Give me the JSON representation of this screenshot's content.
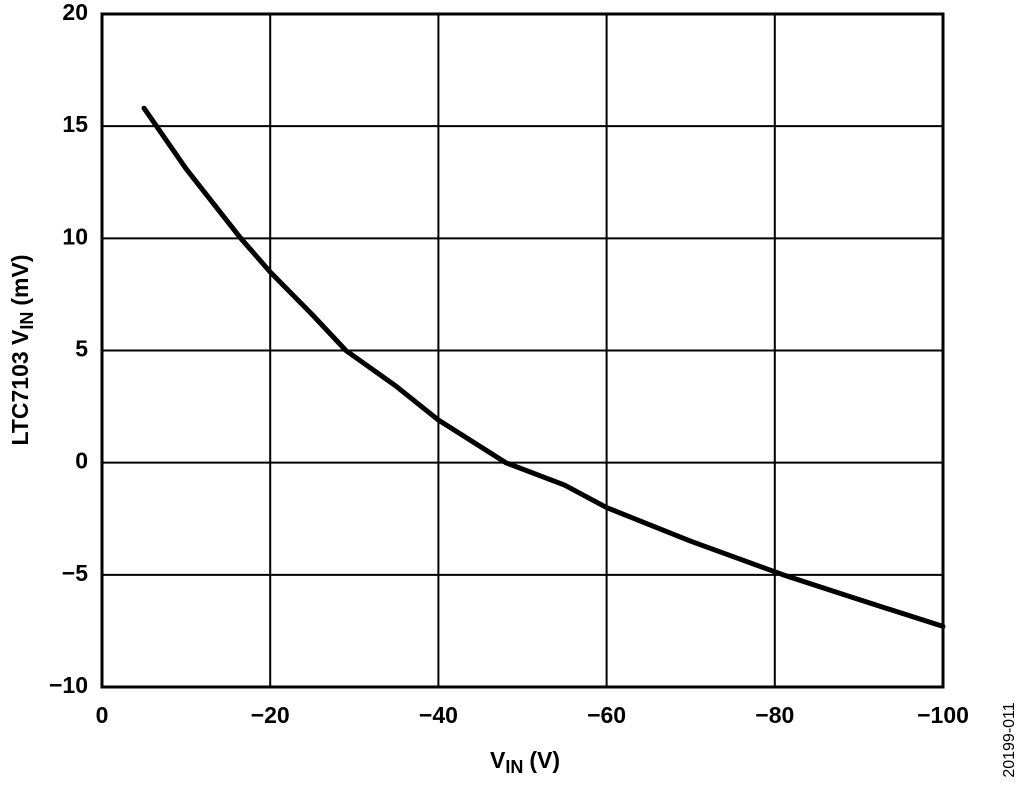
{
  "chart_data": {
    "type": "line",
    "xlabel": {
      "main": "V",
      "sub": "IN",
      "unit": "(V)"
    },
    "ylabel": {
      "main": "LTC7103 V",
      "sub": "IN",
      "unit": "(mV)"
    },
    "note": "20199-011",
    "x": [
      -5,
      -10,
      -16.5,
      -20,
      -25,
      -29,
      -35,
      -40,
      -48,
      -55,
      -60,
      -70,
      -81,
      -90,
      -100
    ],
    "series": [
      {
        "color": "#000000",
        "values": [
          15.8,
          13.1,
          10,
          8.5,
          6.6,
          5,
          3.4,
          1.9,
          0,
          -1.0,
          -2,
          -3.5,
          -5,
          -6.1,
          -7.3
        ]
      }
    ],
    "xlim": [
      0,
      -100
    ],
    "xticks": [
      0,
      {
        "value": -20,
        "label": "−20"
      },
      {
        "value": -40,
        "label": "−40"
      },
      {
        "value": -60,
        "label": "−60"
      },
      {
        "value": -80,
        "label": "−80"
      },
      {
        "value": -100,
        "label": "−100"
      }
    ],
    "ylim": [
      -10,
      20
    ],
    "yticks": [
      {
        "value": -10,
        "label": "−10"
      },
      {
        "value": -5,
        "label": "−5"
      },
      0,
      5,
      10,
      15,
      20
    ],
    "grid": true
  }
}
